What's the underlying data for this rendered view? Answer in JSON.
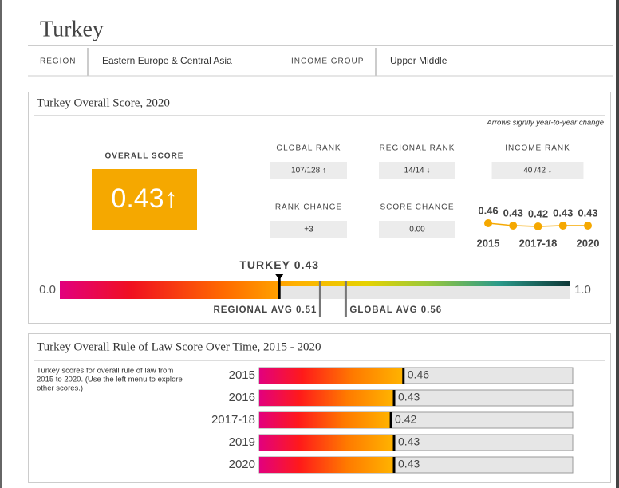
{
  "header": {
    "title": "Turkey"
  },
  "info": {
    "region_label": "REGION",
    "region": "Eastern Europe & Central Asia",
    "income_label": "INCOME GROUP",
    "income": "Upper Middle"
  },
  "score_panel": {
    "title": "Turkey Overall Score, 2020",
    "note": "Arrows signify year-to-year change",
    "overall_label": "OVERALL SCORE",
    "overall_value": "0.43↑",
    "stats": [
      {
        "label": "GLOBAL RANK",
        "value": "107/128 ↑"
      },
      {
        "label": "REGIONAL RANK",
        "value": "14/14 ↓"
      },
      {
        "label": "INCOME RANK",
        "value": "40 /42 ↓"
      },
      {
        "label": "RANK CHANGE",
        "value": "+3"
      },
      {
        "label": "SCORE CHANGE",
        "value": "0.00"
      }
    ]
  },
  "trend_panel": {
    "title": "Turkey Overall Rule of Law Score Over Time, 2015 - 2020",
    "description": [
      "Turkey scores for overall rule of law from",
      "2015 to 2020. (Use the left menu to explore",
      "other scores.)"
    ]
  },
  "chart_data": [
    {
      "type": "scale",
      "categories": [
        "TURKEY",
        "REGIONAL AVG",
        "GLOBAL AVG"
      ],
      "values": [
        0.43,
        0.51,
        0.56
      ],
      "xlim": [
        0,
        1
      ],
      "xticks": [
        {
          "value": 0,
          "label": "0.0"
        },
        {
          "value": 1,
          "label": "1.0"
        }
      ]
    },
    {
      "type": "line",
      "x": [
        "2015",
        null,
        "2017-18",
        null,
        "2020"
      ],
      "values": [
        0.46,
        0.43,
        0.42,
        0.43,
        0.43
      ],
      "color": "#f5a800"
    },
    {
      "type": "hbar",
      "categories": [
        "2015",
        "2016",
        "2017-18",
        "2019",
        "2020"
      ],
      "values": [
        0.46,
        0.43,
        0.42,
        0.43,
        0.43
      ],
      "xlim": [
        0,
        1
      ]
    }
  ]
}
